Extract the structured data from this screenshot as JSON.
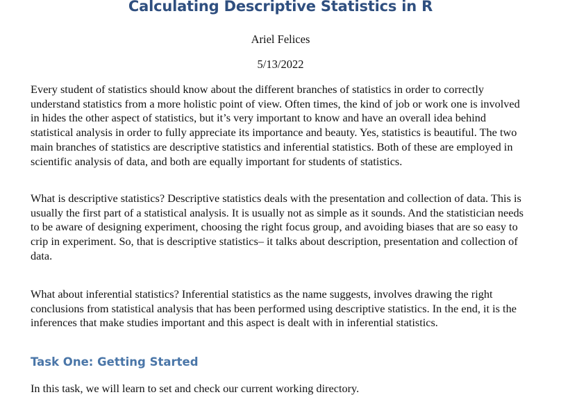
{
  "document": {
    "title": "Calculating Descriptive Statistics in R",
    "author": "Ariel Felices",
    "date": "5/13/2022",
    "paragraphs": [
      "Every student of statistics should know about the different branches of statistics in order to correctly understand statistics from a more holistic point of view. Often times, the kind of job or work one is involved in hides the other aspect of statistics, but it’s very important to know and have an overall idea behind statistical analysis in order to fully appreciate its importance and beauty. Yes, statistics is beautiful. The two main branches of statistics are descriptive statistics and inferential statistics. Both of these are employed in scientific analysis of data, and both are equally important for students of statistics.",
      "What is descriptive statistics? Descriptive statistics deals with the presentation and collection of data. This is usually the first part of a statistical analysis. It is usually not as simple as it sounds. And the statistician needs to be aware of designing experiment, choosing the right focus group, and avoiding biases that are so easy to crip in experiment. So, that is descriptive statistics– it talks about description, presentation and collection of data.",
      "What about inferential statistics? Inferential statistics as the name suggests, involves drawing the right conclusions from statistical analysis that has been performed using descriptive statistics. In the end, it is the inferences that make studies important and this aspect is dealt with in inferential statistics."
    ],
    "section_heading": "Task One: Getting Started",
    "section_paragraph": "In this task, we will learn to set and check our current working directory."
  }
}
